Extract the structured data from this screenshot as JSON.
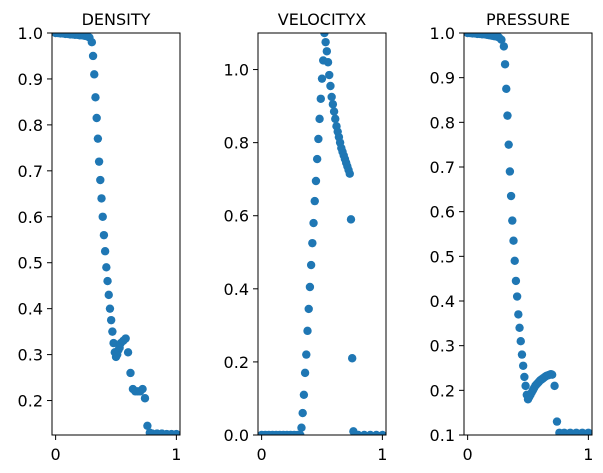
{
  "chart_data": [
    {
      "type": "scatter",
      "title": "DENSITY",
      "xlabel": "",
      "ylabel": "",
      "xlim": [
        -0.03,
        1.03
      ],
      "ylim": [
        0.125,
        1.0
      ],
      "xticks": [
        0,
        1
      ],
      "yticks": [
        0.2,
        0.3,
        0.4,
        0.5,
        0.6,
        0.7,
        0.8,
        0.9,
        1.0
      ],
      "ytick_labels": [
        "0.2",
        "0.3",
        "0.4",
        "0.5",
        "0.6",
        "0.7",
        "0.8",
        "0.9",
        "1.0"
      ],
      "xtick_labels": [
        "0",
        "1"
      ],
      "marker_color": "#1f77b4",
      "grid": false,
      "x": [
        0.0,
        0.02,
        0.04,
        0.06,
        0.08,
        0.1,
        0.12,
        0.14,
        0.16,
        0.18,
        0.2,
        0.22,
        0.24,
        0.26,
        0.28,
        0.3,
        0.31,
        0.32,
        0.33,
        0.34,
        0.35,
        0.36,
        0.37,
        0.38,
        0.39,
        0.4,
        0.41,
        0.42,
        0.43,
        0.44,
        0.45,
        0.46,
        0.47,
        0.48,
        0.49,
        0.5,
        0.51,
        0.52,
        0.53,
        0.54,
        0.56,
        0.58,
        0.6,
        0.62,
        0.64,
        0.66,
        0.68,
        0.7,
        0.72,
        0.74,
        0.76,
        0.78,
        0.8,
        0.84,
        0.88,
        0.92,
        0.96,
        1.0
      ],
      "y": [
        1.0,
        1.0,
        0.999,
        0.999,
        0.998,
        0.998,
        0.997,
        0.997,
        0.996,
        0.996,
        0.995,
        0.995,
        0.994,
        0.993,
        0.99,
        0.98,
        0.95,
        0.91,
        0.86,
        0.815,
        0.77,
        0.72,
        0.68,
        0.64,
        0.6,
        0.56,
        0.525,
        0.49,
        0.46,
        0.43,
        0.4,
        0.375,
        0.35,
        0.325,
        0.305,
        0.295,
        0.3,
        0.31,
        0.315,
        0.325,
        0.33,
        0.335,
        0.305,
        0.26,
        0.225,
        0.22,
        0.22,
        0.22,
        0.225,
        0.205,
        0.145,
        0.13,
        0.128,
        0.128,
        0.128,
        0.127,
        0.127,
        0.127
      ]
    },
    {
      "type": "scatter",
      "title": "VELOCITYX",
      "xlabel": "",
      "ylabel": "",
      "xlim": [
        -0.03,
        1.03
      ],
      "ylim": [
        0.0,
        1.1
      ],
      "xticks": [
        0,
        1
      ],
      "yticks": [
        0.0,
        0.2,
        0.4,
        0.6,
        0.8,
        1.0
      ],
      "ytick_labels": [
        "0.0",
        "0.2",
        "0.4",
        "0.6",
        "0.8",
        "1.0"
      ],
      "xtick_labels": [
        "0",
        "1"
      ],
      "marker_color": "#1f77b4",
      "grid": false,
      "x": [
        0.0,
        0.03,
        0.06,
        0.09,
        0.12,
        0.15,
        0.18,
        0.21,
        0.24,
        0.27,
        0.3,
        0.32,
        0.33,
        0.34,
        0.35,
        0.36,
        0.37,
        0.38,
        0.39,
        0.4,
        0.41,
        0.42,
        0.43,
        0.44,
        0.45,
        0.46,
        0.47,
        0.48,
        0.49,
        0.5,
        0.51,
        0.52,
        0.53,
        0.54,
        0.55,
        0.56,
        0.57,
        0.58,
        0.59,
        0.6,
        0.61,
        0.62,
        0.63,
        0.64,
        0.65,
        0.66,
        0.67,
        0.68,
        0.69,
        0.7,
        0.71,
        0.72,
        0.73,
        0.74,
        0.75,
        0.76,
        0.8,
        0.85,
        0.9,
        0.95,
        1.0
      ],
      "y": [
        0.0,
        0.0,
        0.0,
        0.0,
        0.0,
        0.0,
        0.0,
        0.0,
        0.0,
        0.0,
        0.0,
        0.0,
        0.02,
        0.06,
        0.11,
        0.17,
        0.22,
        0.285,
        0.345,
        0.405,
        0.465,
        0.525,
        0.58,
        0.64,
        0.695,
        0.755,
        0.81,
        0.865,
        0.92,
        0.975,
        1.025,
        1.1,
        1.075,
        1.05,
        1.02,
        0.985,
        0.955,
        0.925,
        0.905,
        0.885,
        0.865,
        0.845,
        0.83,
        0.815,
        0.8,
        0.785,
        0.775,
        0.765,
        0.755,
        0.745,
        0.735,
        0.725,
        0.715,
        0.59,
        0.21,
        0.01,
        0.0,
        0.0,
        0.0,
        0.0,
        0.0
      ]
    },
    {
      "type": "scatter",
      "title": "PRESSURE",
      "xlabel": "",
      "ylabel": "",
      "xlim": [
        -0.03,
        1.03
      ],
      "ylim": [
        0.1,
        1.0
      ],
      "xticks": [
        0,
        1
      ],
      "yticks": [
        0.1,
        0.2,
        0.3,
        0.4,
        0.5,
        0.6,
        0.7,
        0.8,
        0.9,
        1.0
      ],
      "ytick_labels": [
        "0.1",
        "0.2",
        "0.3",
        "0.4",
        "0.5",
        "0.6",
        "0.7",
        "0.8",
        "0.9",
        "1.0"
      ],
      "xtick_labels": [
        "0",
        "1"
      ],
      "marker_color": "#1f77b4",
      "grid": false,
      "x": [
        0.0,
        0.02,
        0.04,
        0.06,
        0.08,
        0.1,
        0.12,
        0.14,
        0.16,
        0.18,
        0.2,
        0.22,
        0.24,
        0.26,
        0.28,
        0.3,
        0.31,
        0.32,
        0.33,
        0.34,
        0.35,
        0.36,
        0.37,
        0.38,
        0.39,
        0.4,
        0.41,
        0.42,
        0.43,
        0.44,
        0.45,
        0.46,
        0.47,
        0.48,
        0.49,
        0.5,
        0.51,
        0.52,
        0.53,
        0.54,
        0.55,
        0.56,
        0.57,
        0.58,
        0.59,
        0.6,
        0.61,
        0.62,
        0.63,
        0.64,
        0.65,
        0.66,
        0.67,
        0.68,
        0.69,
        0.7,
        0.72,
        0.74,
        0.76,
        0.8,
        0.85,
        0.9,
        0.95,
        1.0
      ],
      "y": [
        1.0,
        1.0,
        0.999,
        0.999,
        0.998,
        0.998,
        0.997,
        0.997,
        0.996,
        0.995,
        0.994,
        0.993,
        0.992,
        0.99,
        0.985,
        0.97,
        0.93,
        0.875,
        0.815,
        0.75,
        0.69,
        0.635,
        0.58,
        0.535,
        0.49,
        0.445,
        0.41,
        0.37,
        0.34,
        0.31,
        0.28,
        0.255,
        0.23,
        0.21,
        0.19,
        0.18,
        0.185,
        0.19,
        0.195,
        0.2,
        0.205,
        0.21,
        0.213,
        0.216,
        0.219,
        0.222,
        0.224,
        0.226,
        0.228,
        0.23,
        0.232,
        0.233,
        0.234,
        0.235,
        0.236,
        0.235,
        0.21,
        0.13,
        0.105,
        0.105,
        0.105,
        0.105,
        0.105,
        0.105
      ]
    }
  ]
}
